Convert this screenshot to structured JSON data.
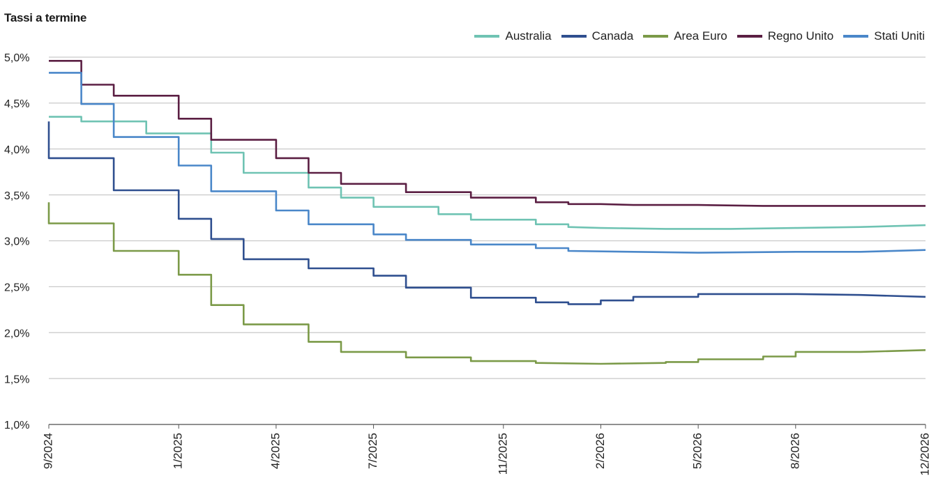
{
  "chart_data": {
    "type": "line",
    "title": "Tassi a termine",
    "y_tick_labels": [
      "1,0%",
      "1,5%",
      "2,0%",
      "2,5%",
      "3,0%",
      "3,5%",
      "4,0%",
      "4,5%",
      "5,0%"
    ],
    "y_ticks": [
      1.0,
      1.5,
      2.0,
      2.5,
      3.0,
      3.5,
      4.0,
      4.5,
      5.0
    ],
    "ylim": [
      1.0,
      5.0
    ],
    "x_tick_labels": [
      "9/2024",
      "1/2025",
      "4/2025",
      "7/2025",
      "11/2025",
      "2/2026",
      "5/2026",
      "8/2026",
      "12/2026"
    ],
    "x_ticks": [
      "2024-09",
      "2025-01",
      "2025-04",
      "2025-07",
      "2025-11",
      "2026-02",
      "2026-05",
      "2026-08",
      "2026-12"
    ],
    "xlim": [
      "2024-09",
      "2026-12"
    ],
    "grid": true,
    "legend_position": "top-right",
    "series": [
      {
        "name": "Australia",
        "color": "#6fc3b3",
        "points": [
          [
            "2024-09",
            4.35
          ],
          [
            "2024-10",
            4.35
          ],
          [
            "2024-10",
            4.3
          ],
          [
            "2024-12",
            4.3
          ],
          [
            "2024-12",
            4.17
          ],
          [
            "2025-02",
            4.17
          ],
          [
            "2025-02",
            3.96
          ],
          [
            "2025-03",
            3.96
          ],
          [
            "2025-03",
            3.74
          ],
          [
            "2025-05",
            3.74
          ],
          [
            "2025-05",
            3.58
          ],
          [
            "2025-06",
            3.58
          ],
          [
            "2025-06",
            3.47
          ],
          [
            "2025-07",
            3.47
          ],
          [
            "2025-07",
            3.37
          ],
          [
            "2025-09",
            3.37
          ],
          [
            "2025-09",
            3.29
          ],
          [
            "2025-10",
            3.29
          ],
          [
            "2025-10",
            3.23
          ],
          [
            "2025-12",
            3.23
          ],
          [
            "2025-12",
            3.18
          ],
          [
            "2026-01",
            3.18
          ],
          [
            "2026-01",
            3.15
          ],
          [
            "2026-02",
            3.14
          ],
          [
            "2026-04",
            3.13
          ],
          [
            "2026-06",
            3.13
          ],
          [
            "2026-08",
            3.14
          ],
          [
            "2026-10",
            3.15
          ],
          [
            "2026-12",
            3.17
          ]
        ]
      },
      {
        "name": "Canada",
        "color": "#2f4f8f",
        "points": [
          [
            "2024-09",
            4.3
          ],
          [
            "2024-09",
            4.3
          ],
          [
            "2024-09",
            3.9
          ],
          [
            "2024-11",
            3.9
          ],
          [
            "2024-11",
            3.55
          ],
          [
            "2025-01",
            3.55
          ],
          [
            "2025-01",
            3.24
          ],
          [
            "2025-02",
            3.24
          ],
          [
            "2025-02",
            3.02
          ],
          [
            "2025-03",
            3.02
          ],
          [
            "2025-03",
            2.8
          ],
          [
            "2025-05",
            2.8
          ],
          [
            "2025-05",
            2.7
          ],
          [
            "2025-07",
            2.7
          ],
          [
            "2025-07",
            2.62
          ],
          [
            "2025-08",
            2.62
          ],
          [
            "2025-08",
            2.49
          ],
          [
            "2025-10",
            2.49
          ],
          [
            "2025-10",
            2.38
          ],
          [
            "2025-12",
            2.38
          ],
          [
            "2025-12",
            2.33
          ],
          [
            "2026-01",
            2.33
          ],
          [
            "2026-01",
            2.31
          ],
          [
            "2026-02",
            2.31
          ],
          [
            "2026-02",
            2.35
          ],
          [
            "2026-03",
            2.35
          ],
          [
            "2026-03",
            2.39
          ],
          [
            "2026-05",
            2.39
          ],
          [
            "2026-05",
            2.42
          ],
          [
            "2026-08",
            2.42
          ],
          [
            "2026-10",
            2.41
          ],
          [
            "2026-12",
            2.39
          ]
        ]
      },
      {
        "name": "Area Euro",
        "color": "#7b9a48",
        "points": [
          [
            "2024-09",
            3.42
          ],
          [
            "2024-09",
            3.42
          ],
          [
            "2024-09",
            3.19
          ],
          [
            "2024-11",
            3.19
          ],
          [
            "2024-11",
            2.89
          ],
          [
            "2025-01",
            2.89
          ],
          [
            "2025-01",
            2.63
          ],
          [
            "2025-02",
            2.63
          ],
          [
            "2025-02",
            2.3
          ],
          [
            "2025-03",
            2.3
          ],
          [
            "2025-03",
            2.09
          ],
          [
            "2025-05",
            2.09
          ],
          [
            "2025-05",
            1.9
          ],
          [
            "2025-06",
            1.9
          ],
          [
            "2025-06",
            1.79
          ],
          [
            "2025-08",
            1.79
          ],
          [
            "2025-08",
            1.73
          ],
          [
            "2025-10",
            1.73
          ],
          [
            "2025-10",
            1.69
          ],
          [
            "2025-12",
            1.69
          ],
          [
            "2025-12",
            1.67
          ],
          [
            "2026-02",
            1.66
          ],
          [
            "2026-04",
            1.67
          ],
          [
            "2026-04",
            1.68
          ],
          [
            "2026-05",
            1.68
          ],
          [
            "2026-05",
            1.71
          ],
          [
            "2026-07",
            1.71
          ],
          [
            "2026-07",
            1.74
          ],
          [
            "2026-08",
            1.74
          ],
          [
            "2026-08",
            1.79
          ],
          [
            "2026-10",
            1.79
          ],
          [
            "2026-12",
            1.81
          ]
        ]
      },
      {
        "name": "Regno Unito",
        "color": "#5b1f43",
        "points": [
          [
            "2024-09",
            4.96
          ],
          [
            "2024-10",
            4.96
          ],
          [
            "2024-10",
            4.7
          ],
          [
            "2024-11",
            4.7
          ],
          [
            "2024-11",
            4.58
          ],
          [
            "2025-01",
            4.58
          ],
          [
            "2025-01",
            4.33
          ],
          [
            "2025-02",
            4.33
          ],
          [
            "2025-02",
            4.1
          ],
          [
            "2025-04",
            4.1
          ],
          [
            "2025-04",
            3.9
          ],
          [
            "2025-05",
            3.9
          ],
          [
            "2025-05",
            3.74
          ],
          [
            "2025-06",
            3.74
          ],
          [
            "2025-06",
            3.62
          ],
          [
            "2025-08",
            3.62
          ],
          [
            "2025-08",
            3.53
          ],
          [
            "2025-10",
            3.53
          ],
          [
            "2025-10",
            3.47
          ],
          [
            "2025-12",
            3.47
          ],
          [
            "2025-12",
            3.42
          ],
          [
            "2026-01",
            3.42
          ],
          [
            "2026-01",
            3.4
          ],
          [
            "2026-02",
            3.4
          ],
          [
            "2026-03",
            3.39
          ],
          [
            "2026-05",
            3.39
          ],
          [
            "2026-07",
            3.38
          ],
          [
            "2026-12",
            3.38
          ]
        ]
      },
      {
        "name": "Stati Uniti",
        "color": "#4a87c9",
        "points": [
          [
            "2024-09",
            4.83
          ],
          [
            "2024-10",
            4.83
          ],
          [
            "2024-10",
            4.49
          ],
          [
            "2024-11",
            4.49
          ],
          [
            "2024-11",
            4.13
          ],
          [
            "2025-01",
            4.13
          ],
          [
            "2025-01",
            3.82
          ],
          [
            "2025-02",
            3.82
          ],
          [
            "2025-02",
            3.54
          ],
          [
            "2025-04",
            3.54
          ],
          [
            "2025-04",
            3.33
          ],
          [
            "2025-05",
            3.33
          ],
          [
            "2025-05",
            3.18
          ],
          [
            "2025-07",
            3.18
          ],
          [
            "2025-07",
            3.07
          ],
          [
            "2025-08",
            3.07
          ],
          [
            "2025-08",
            3.01
          ],
          [
            "2025-10",
            3.01
          ],
          [
            "2025-10",
            2.96
          ],
          [
            "2025-12",
            2.96
          ],
          [
            "2025-12",
            2.92
          ],
          [
            "2026-01",
            2.92
          ],
          [
            "2026-01",
            2.89
          ],
          [
            "2026-03",
            2.88
          ],
          [
            "2026-05",
            2.87
          ],
          [
            "2026-08",
            2.88
          ],
          [
            "2026-10",
            2.88
          ],
          [
            "2026-12",
            2.9
          ]
        ]
      }
    ]
  },
  "colors": {
    "grid": "#c9c9c9",
    "axis": "#555555",
    "text": "#222222"
  }
}
